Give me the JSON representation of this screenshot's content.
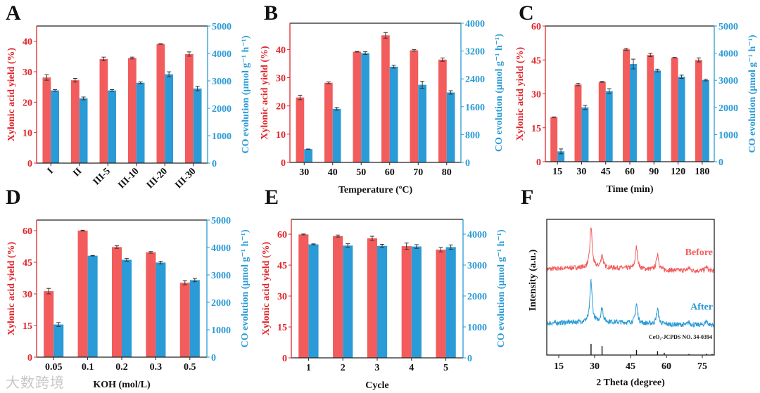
{
  "colors": {
    "yield": "#f25c5c",
    "co": "#2a9bd6",
    "yield_axis": "#e0252a",
    "co_axis": "#2a9bd6",
    "axis": "#222222"
  },
  "watermark": "大数跨境",
  "chart_data": [
    {
      "panel": "A",
      "type": "bar",
      "categories": [
        "I",
        "II",
        "III-5",
        "III-10",
        "III-20",
        "III-30"
      ],
      "series": [
        {
          "name": "Xylonic acid yield (%)",
          "axis": "left",
          "values": [
            28.1,
            27.2,
            34.2,
            34.5,
            39.1,
            35.8
          ],
          "errors": [
            0.9,
            0.6,
            0.6,
            0.3,
            0.1,
            0.7
          ]
        },
        {
          "name": "CO evolution (μmol g⁻¹ h⁻¹)",
          "axis": "right",
          "values": [
            2650,
            2360,
            2650,
            2930,
            3240,
            2720
          ],
          "errors": [
            30,
            50,
            30,
            30,
            90,
            80
          ]
        }
      ],
      "xlabel": "",
      "ylabel": "Xylonic acid yield (%)",
      "y2label": "CO evolution (μmol g⁻¹ h⁻¹)",
      "ylim": [
        0,
        45
      ],
      "yticks": [
        0,
        10,
        20,
        30,
        40
      ],
      "y2lim": [
        0,
        5000
      ],
      "y2ticks": [
        0,
        1000,
        2000,
        3000,
        4000,
        5000
      ]
    },
    {
      "panel": "B",
      "type": "bar",
      "categories": [
        "30",
        "40",
        "50",
        "60",
        "70",
        "80"
      ],
      "series": [
        {
          "name": "Xylonic acid yield (%)",
          "axis": "left",
          "values": [
            23.0,
            28.2,
            39.2,
            45.0,
            39.7,
            36.4
          ],
          "errors": [
            0.8,
            0.3,
            0.1,
            1.0,
            0.3,
            0.6
          ]
        },
        {
          "name": "CO evolution (μmol g⁻¹ h⁻¹)",
          "axis": "right",
          "values": [
            380,
            1540,
            3140,
            2750,
            2230,
            2010
          ],
          "errors": [
            5,
            40,
            40,
            40,
            100,
            50
          ]
        }
      ],
      "xlabel": "Temperature (ºC)",
      "ylabel": "Xylonic acid yield (%)",
      "y2label": "CO evolution (μmol g⁻¹ h⁻¹)",
      "ylim": [
        0,
        49.3
      ],
      "yticks": [
        0,
        10,
        20,
        30,
        40
      ],
      "y2lim": [
        0,
        4000
      ],
      "y2ticks": [
        0,
        800,
        1600,
        2400,
        3200,
        4000
      ]
    },
    {
      "panel": "C",
      "type": "bar",
      "categories": [
        "15",
        "30",
        "45",
        "60",
        "90",
        "120",
        "180"
      ],
      "series": [
        {
          "name": "Xylonic acid yield (%)",
          "axis": "left",
          "values": [
            19.7,
            34.1,
            35.3,
            49.7,
            47.2,
            46.0,
            45.0
          ],
          "errors": [
            0.1,
            0.5,
            0.2,
            0.4,
            0.7,
            0.1,
            0.9
          ]
        },
        {
          "name": "CO evolution (μmol g⁻¹ h⁻¹)",
          "axis": "right",
          "values": [
            380,
            2000,
            2600,
            3600,
            3360,
            3130,
            3010
          ],
          "errors": [
            90,
            80,
            90,
            180,
            50,
            60,
            30
          ]
        }
      ],
      "xlabel": "Time (min)",
      "ylabel": "Xylonic acid yield (%)",
      "y2label": "CO evolution (μmol g⁻¹ h⁻¹)",
      "ylim": [
        0,
        60
      ],
      "yticks": [
        0,
        15,
        30,
        45,
        60
      ],
      "y2lim": [
        0,
        5000
      ],
      "y2ticks": [
        0,
        1000,
        2000,
        3000,
        4000,
        5000
      ]
    },
    {
      "panel": "D",
      "type": "bar",
      "categories": [
        "0.05",
        "0.1",
        "0.2",
        "0.3",
        "0.5"
      ],
      "series": [
        {
          "name": "Xylonic acid yield (%)",
          "axis": "left",
          "values": [
            31.3,
            60.0,
            52.2,
            49.7,
            35.3
          ],
          "errors": [
            1.3,
            0.2,
            0.6,
            0.4,
            1.0
          ]
        },
        {
          "name": "CO evolution (μmol g⁻¹ h⁻¹)",
          "axis": "right",
          "values": [
            1190,
            3700,
            3550,
            3450,
            2810
          ],
          "errors": [
            70,
            10,
            50,
            50,
            60
          ]
        }
      ],
      "xlabel": "KOH (mol/L)",
      "ylabel": "Xylonic acid yield (%)",
      "y2label": "CO evolution (μmol g⁻¹ h⁻¹)",
      "ylim": [
        0,
        65
      ],
      "yticks": [
        0,
        15,
        30,
        45,
        60
      ],
      "y2lim": [
        0,
        5000
      ],
      "y2ticks": [
        0,
        1000,
        2000,
        3000,
        4000,
        5000
      ]
    },
    {
      "panel": "E",
      "type": "bar",
      "categories": [
        "1",
        "2",
        "3",
        "4",
        "5"
      ],
      "series": [
        {
          "name": "Xylonic acid yield (%)",
          "axis": "left",
          "values": [
            59.9,
            59.1,
            58.0,
            54.2,
            52.5
          ],
          "errors": [
            0.2,
            0.5,
            1.0,
            1.5,
            1.1
          ]
        },
        {
          "name": "CO evolution (μmol g⁻¹ h⁻¹)",
          "axis": "right",
          "values": [
            3670,
            3630,
            3620,
            3600,
            3580
          ],
          "errors": [
            15,
            60,
            50,
            60,
            70
          ]
        }
      ],
      "xlabel": "Cycle",
      "ylabel": "Xylonic acid yield (%)",
      "y2label": "CO evolution (μmol g⁻¹ h⁻¹)",
      "ylim": [
        0,
        67.2
      ],
      "yticks": [
        0,
        15,
        30,
        45,
        60
      ],
      "y2lim": [
        0,
        4477
      ],
      "y2ticks": [
        0,
        1000,
        2000,
        3000,
        4000
      ]
    },
    {
      "panel": "F",
      "type": "line",
      "xlabel": "2 Theta (degree)",
      "ylabel": "Intensity (a.u.)",
      "xlim": [
        10,
        80
      ],
      "xticks": [
        15,
        30,
        45,
        60,
        75
      ],
      "series": [
        {
          "name": "Before",
          "label": "Before",
          "baseline": 0.62,
          "peaks": [
            [
              28.5,
              0.3
            ],
            [
              33.1,
              0.09
            ],
            [
              47.5,
              0.16
            ],
            [
              56.3,
              0.12
            ],
            [
              69.4,
              0.02
            ],
            [
              76.7,
              0.03
            ]
          ]
        },
        {
          "name": "After",
          "label": "After",
          "baseline": 0.22,
          "peaks": [
            [
              28.5,
              0.3
            ],
            [
              33.1,
              0.1
            ],
            [
              47.5,
              0.14
            ],
            [
              56.3,
              0.11
            ],
            [
              69.4,
              0.02
            ],
            [
              76.7,
              0.03
            ]
          ]
        }
      ],
      "reference": {
        "label": "CeO₂-JCPDS NO. 34-0394",
        "positions": [
          28.5,
          33.1,
          47.5,
          56.3,
          59.1,
          69.4,
          76.7,
          79.1
        ],
        "intensities": [
          1.0,
          0.8,
          0.45,
          0.35,
          0.2,
          0.1,
          0.12,
          0.1
        ]
      }
    }
  ],
  "panel_labels": [
    "A",
    "B",
    "C",
    "D",
    "E",
    "F"
  ]
}
